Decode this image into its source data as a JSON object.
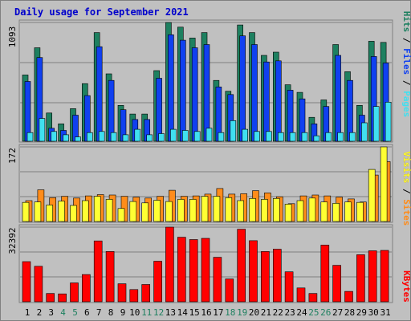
{
  "chart_data": [
    {
      "type": "bar",
      "title": "Daily usage for September 2021",
      "categories": [
        "1",
        "2",
        "3",
        "4",
        "5",
        "6",
        "7",
        "8",
        "9",
        "10",
        "11",
        "12",
        "13",
        "14",
        "15",
        "16",
        "17",
        "18",
        "19",
        "20",
        "21",
        "22",
        "23",
        "24",
        "25",
        "26",
        "27",
        "28",
        "29",
        "30",
        "31"
      ],
      "weekend_days": [
        "4",
        "5",
        "11",
        "12",
        "18",
        "19",
        "25",
        "26"
      ],
      "y_max_label": "1093",
      "ylim": [
        0,
        1093
      ],
      "legend": {
        "position": "right",
        "labels": [
          "Pages",
          "Files",
          "Hits"
        ],
        "separator": " / "
      },
      "series": [
        {
          "name": "Hits",
          "color": "#1e8060",
          "values": [
            610,
            860,
            260,
            160,
            300,
            530,
            1000,
            620,
            330,
            250,
            250,
            650,
            1093,
            1050,
            950,
            1000,
            560,
            460,
            1070,
            1000,
            790,
            820,
            520,
            450,
            220,
            380,
            890,
            640,
            330,
            920,
            910
          ]
        },
        {
          "name": "Files",
          "color": "#1040f0",
          "values": [
            550,
            770,
            120,
            100,
            240,
            420,
            870,
            560,
            290,
            200,
            200,
            580,
            980,
            930,
            860,
            890,
            500,
            430,
            970,
            890,
            730,
            740,
            470,
            390,
            160,
            320,
            790,
            560,
            240,
            780,
            720
          ]
        },
        {
          "name": "Pages",
          "color": "#40e0f0",
          "values": [
            80,
            210,
            90,
            60,
            40,
            80,
            90,
            80,
            60,
            110,
            60,
            70,
            110,
            100,
            90,
            120,
            80,
            190,
            110,
            90,
            90,
            80,
            80,
            80,
            50,
            80,
            80,
            80,
            170,
            320,
            360
          ]
        }
      ]
    },
    {
      "type": "bar",
      "categories": [
        "1",
        "2",
        "3",
        "4",
        "5",
        "6",
        "7",
        "8",
        "9",
        "10",
        "11",
        "12",
        "13",
        "14",
        "15",
        "16",
        "17",
        "18",
        "19",
        "20",
        "21",
        "22",
        "23",
        "24",
        "25",
        "26",
        "27",
        "28",
        "29",
        "30",
        "31"
      ],
      "y_max_label": "172",
      "ylim": [
        0,
        172
      ],
      "legend": {
        "position": "right",
        "labels": [
          "Sites",
          "Visits"
        ],
        "separator": " / "
      },
      "series": [
        {
          "name": "Visits",
          "color": "#ff8c1a",
          "values": [
            48,
            73,
            55,
            58,
            54,
            59,
            62,
            61,
            58,
            56,
            54,
            58,
            72,
            58,
            59,
            63,
            76,
            63,
            64,
            71,
            66,
            57,
            41,
            59,
            61,
            59,
            56,
            52,
            45,
            107,
            138
          ]
        },
        {
          "name": "Sites",
          "color": "#ffff33",
          "values": [
            44,
            45,
            38,
            47,
            37,
            48,
            58,
            51,
            30,
            46,
            43,
            49,
            46,
            51,
            51,
            58,
            58,
            55,
            48,
            53,
            51,
            53,
            40,
            48,
            54,
            45,
            42,
            45,
            44,
            120,
            172
          ]
        }
      ]
    },
    {
      "type": "bar",
      "categories": [
        "1",
        "2",
        "3",
        "4",
        "5",
        "6",
        "7",
        "8",
        "9",
        "10",
        "11",
        "12",
        "13",
        "14",
        "15",
        "16",
        "17",
        "18",
        "19",
        "20",
        "21",
        "22",
        "23",
        "24",
        "25",
        "26",
        "27",
        "28",
        "29",
        "30",
        "31"
      ],
      "y_max_label": "32392",
      "ylim": [
        0,
        32392
      ],
      "legend": {
        "position": "right",
        "labels": [
          "KBytes"
        ],
        "separator": ""
      },
      "series": [
        {
          "name": "KBytes",
          "color": "#ff0000",
          "values": [
            17400,
            15400,
            3600,
            3400,
            8200,
            11800,
            26400,
            21800,
            7800,
            5300,
            7500,
            17600,
            32392,
            28000,
            27000,
            27500,
            19300,
            9900,
            31500,
            26500,
            21800,
            22800,
            13000,
            6000,
            3600,
            24600,
            15800,
            4500,
            20400,
            22100,
            22300
          ]
        }
      ]
    }
  ],
  "colors": {
    "background": "#c0c0c0",
    "plot_background": "#c0c0c0",
    "title": "#0000cc",
    "weekday_label": "#000000",
    "weekend_label": "#1e8060",
    "outline": "#000000"
  }
}
